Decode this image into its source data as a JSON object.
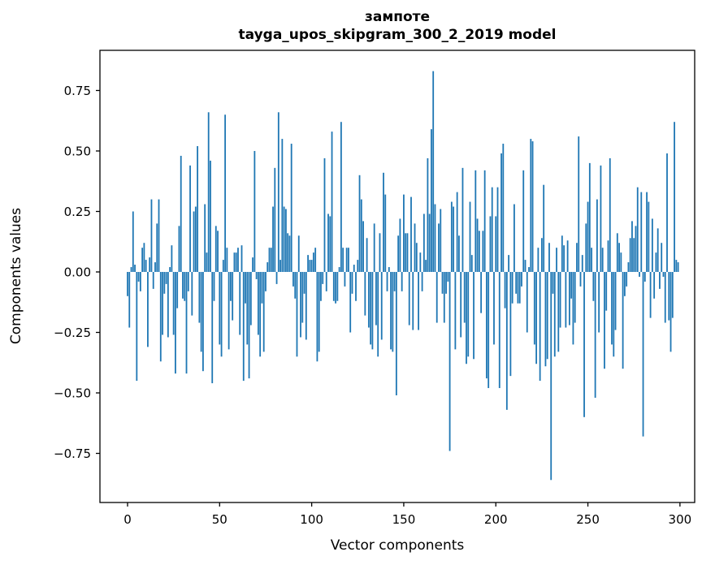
{
  "figure": {
    "title_line1": "зампоте",
    "title_line2": "tayga_upos_skipgram_300_2_2019 model"
  },
  "chart_data": {
    "type": "bar",
    "title": "зампоте\ntayga_upos_skipgram_300_2_2019 model",
    "xlabel": "Vector components",
    "ylabel": "Components values",
    "xlim": [
      -15,
      308
    ],
    "ylim": [
      -0.953,
      0.916
    ],
    "x_ticks": [
      0,
      50,
      100,
      150,
      200,
      250,
      300
    ],
    "y_ticks": [
      -0.75,
      -0.5,
      -0.25,
      0.0,
      0.25,
      0.5,
      0.75
    ],
    "grid": false,
    "legend": null,
    "bar_color": "#1f77b4",
    "axis_color": "#000000",
    "background_color": "#ffffff",
    "x_start": 0,
    "x_step": 1,
    "values": [
      -0.1,
      -0.23,
      0.02,
      0.25,
      0.03,
      -0.45,
      -0.04,
      -0.08,
      0.1,
      0.12,
      0.05,
      -0.31,
      0.06,
      0.3,
      -0.07,
      0.04,
      0.2,
      0.3,
      -0.37,
      -0.26,
      -0.09,
      -0.05,
      -0.27,
      0.02,
      0.11,
      -0.26,
      -0.42,
      -0.15,
      0.19,
      0.48,
      -0.11,
      -0.12,
      -0.42,
      -0.08,
      0.44,
      -0.18,
      0.25,
      0.27,
      0.52,
      -0.21,
      -0.33,
      -0.41,
      0.28,
      0.08,
      0.66,
      0.46,
      -0.46,
      -0.12,
      0.19,
      0.17,
      -0.3,
      -0.35,
      0.05,
      0.65,
      0.1,
      -0.32,
      -0.12,
      -0.2,
      0.08,
      0.08,
      0.1,
      -0.26,
      0.11,
      -0.45,
      -0.13,
      -0.3,
      -0.44,
      -0.22,
      0.06,
      0.5,
      -0.03,
      -0.26,
      -0.35,
      -0.13,
      -0.33,
      -0.08,
      0.04,
      0.1,
      0.1,
      0.27,
      0.43,
      -0.05,
      0.66,
      0.05,
      0.55,
      0.27,
      0.26,
      0.16,
      0.15,
      0.53,
      -0.06,
      -0.11,
      -0.35,
      0.15,
      -0.27,
      -0.21,
      -0.09,
      -0.28,
      0.07,
      0.05,
      0.05,
      0.08,
      0.1,
      -0.37,
      -0.33,
      -0.12,
      -0.05,
      0.47,
      -0.08,
      0.24,
      0.23,
      0.58,
      -0.12,
      -0.13,
      -0.12,
      0.02,
      0.62,
      0.1,
      -0.06,
      0.1,
      0.1,
      -0.25,
      -0.09,
      0.03,
      -0.12,
      0.05,
      0.4,
      0.3,
      0.21,
      -0.18,
      0.14,
      -0.23,
      -0.3,
      -0.32,
      0.2,
      -0.22,
      -0.35,
      0.16,
      -0.28,
      0.41,
      0.32,
      -0.08,
      0.02,
      -0.32,
      -0.33,
      -0.08,
      -0.51,
      0.15,
      0.22,
      -0.08,
      0.32,
      0.16,
      0.16,
      -0.22,
      0.31,
      -0.24,
      0.2,
      0.12,
      -0.24,
      0.08,
      -0.08,
      0.24,
      0.05,
      0.47,
      0.24,
      0.59,
      0.83,
      0.28,
      -0.21,
      0.2,
      0.26,
      -0.09,
      -0.21,
      -0.09,
      -0.04,
      -0.74,
      0.29,
      0.27,
      -0.32,
      0.33,
      0.15,
      -0.27,
      0.43,
      -0.21,
      -0.38,
      -0.35,
      0.29,
      0.07,
      -0.36,
      0.42,
      0.22,
      0.17,
      -0.17,
      0.17,
      0.42,
      -0.44,
      -0.48,
      0.23,
      0.35,
      -0.3,
      0.23,
      0.35,
      -0.48,
      0.49,
      0.53,
      -0.15,
      -0.57,
      0.07,
      -0.43,
      -0.13,
      0.28,
      -0.09,
      -0.13,
      -0.13,
      -0.06,
      0.42,
      0.05,
      -0.25,
      0.02,
      0.55,
      0.54,
      -0.3,
      -0.38,
      0.1,
      -0.45,
      0.14,
      0.36,
      -0.39,
      -0.36,
      0.12,
      -0.86,
      -0.09,
      -0.35,
      0.1,
      -0.33,
      -0.23,
      0.15,
      0.11,
      -0.23,
      0.13,
      -0.22,
      -0.11,
      -0.3,
      -0.21,
      0.12,
      0.56,
      -0.06,
      0.07,
      -0.6,
      0.2,
      0.29,
      0.45,
      0.1,
      -0.12,
      -0.52,
      0.3,
      -0.25,
      0.44,
      0.1,
      -0.4,
      -0.16,
      0.13,
      0.47,
      -0.3,
      -0.35,
      -0.24,
      0.16,
      0.12,
      0.08,
      -0.4,
      -0.1,
      -0.06,
      0.04,
      0.14,
      0.21,
      0.14,
      0.19,
      0.35,
      -0.02,
      0.33,
      -0.68,
      -0.04,
      0.33,
      0.29,
      -0.19,
      0.22,
      -0.11,
      0.08,
      0.18,
      -0.07,
      0.12,
      -0.02,
      -0.21,
      0.49,
      -0.2,
      -0.33,
      -0.19,
      0.62,
      0.05,
      0.04
    ]
  }
}
